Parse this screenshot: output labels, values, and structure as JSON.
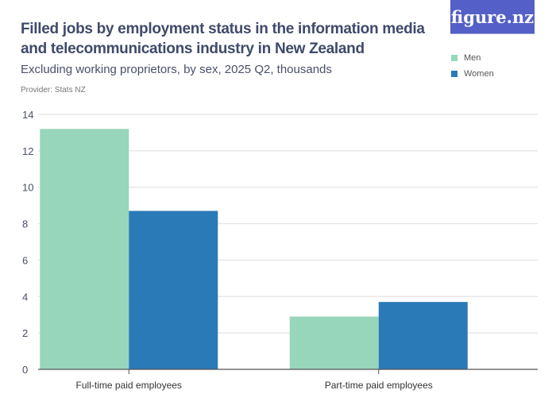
{
  "header": {
    "title": "Filled jobs by employment status in the information media and telecommunications industry in New Zealand",
    "subtitle": "Excluding working proprietors, by sex, 2025 Q2, thousands",
    "provider": "Provider: Stats NZ",
    "logo": "figure.nz"
  },
  "chart_data": {
    "type": "bar",
    "title": "Filled jobs by employment status in the information media and telecommunications industry in New Zealand",
    "categories": [
      "Full-time paid employees",
      "Part-time paid employees"
    ],
    "series": [
      {
        "name": "Men",
        "values": [
          13.2,
          2.9
        ],
        "color": "#97d6bb"
      },
      {
        "name": "Women",
        "values": [
          8.7,
          3.7
        ],
        "color": "#2a7ab7"
      }
    ],
    "yticks": [
      0,
      2,
      4,
      6,
      8,
      10,
      12,
      14
    ],
    "ylim": [
      0,
      14
    ],
    "grid": true,
    "legend": "top-right"
  }
}
